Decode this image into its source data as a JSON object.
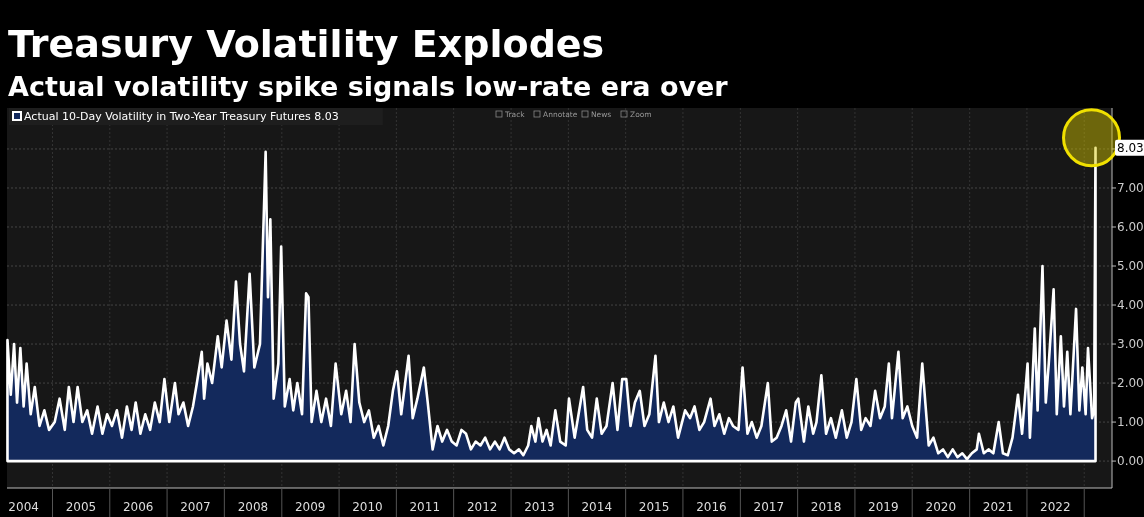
{
  "chart_data": {
    "type": "area",
    "title": "Treasury Volatility Explodes",
    "subtitle": "Actual volatility spike signals low-rate era over",
    "annotations": [
      "Track",
      "Annotate",
      "News",
      "Zoom",
      {
        "text": "8.03",
        "x": "2023-03-14",
        "y": 8.03
      }
    ],
    "x": [
      "2004-03-20",
      "2004-04-10",
      "2004-05-01",
      "2004-05-20",
      "2004-06-10",
      "2004-07-01",
      "2004-07-20",
      "2004-08-15",
      "2004-09-10",
      "2004-10-10",
      "2004-11-10",
      "2004-12-10",
      "2005-01-15",
      "2005-02-15",
      "2005-03-20",
      "2005-04-15",
      "2005-05-15",
      "2005-06-10",
      "2005-07-10",
      "2005-08-10",
      "2005-09-10",
      "2005-10-15",
      "2005-11-15",
      "2005-12-15",
      "2006-01-15",
      "2006-02-15",
      "2006-03-20",
      "2006-04-20",
      "2006-05-20",
      "2006-06-15",
      "2006-07-15",
      "2006-08-15",
      "2006-09-15",
      "2006-10-15",
      "2006-11-15",
      "2006-12-15",
      "2007-01-15",
      "2007-02-20",
      "2007-03-15",
      "2007-04-15",
      "2007-05-15",
      "2007-06-15",
      "2007-07-10",
      "2007-08-10",
      "2007-08-25",
      "2007-09-15",
      "2007-10-15",
      "2007-11-20",
      "2007-12-15",
      "2008-01-15",
      "2008-02-15",
      "2008-03-15",
      "2008-04-10",
      "2008-05-05",
      "2008-06-10",
      "2008-07-10",
      "2008-08-15",
      "2008-09-20",
      "2008-10-05",
      "2008-10-20",
      "2008-11-10",
      "2008-12-10",
      "2008-12-28",
      "2009-01-20",
      "2009-02-20",
      "2009-03-15",
      "2009-04-10",
      "2009-05-10",
      "2009-06-05",
      "2009-06-20",
      "2009-07-10",
      "2009-08-10",
      "2009-09-10",
      "2009-10-10",
      "2009-11-10",
      "2009-12-10",
      "2010-01-15",
      "2010-02-15",
      "2010-03-15",
      "2010-04-10",
      "2010-05-10",
      "2010-06-10",
      "2010-07-10",
      "2010-08-10",
      "2010-09-10",
      "2010-10-10",
      "2010-11-10",
      "2010-12-10",
      "2011-01-05",
      "2011-02-01",
      "2011-03-20",
      "2011-04-15",
      "2011-05-15",
      "2011-06-25",
      "2011-07-20",
      "2011-08-20",
      "2011-09-20",
      "2011-10-20",
      "2011-11-20",
      "2011-12-20",
      "2012-01-20",
      "2012-02-20",
      "2012-03-20",
      "2012-04-20",
      "2012-05-20",
      "2012-06-20",
      "2012-07-20",
      "2012-08-20",
      "2012-09-20",
      "2012-10-20",
      "2012-11-20",
      "2012-12-20",
      "2013-01-20",
      "2013-02-20",
      "2013-03-20",
      "2013-04-20",
      "2013-05-10",
      "2013-06-05",
      "2013-06-25",
      "2013-07-20",
      "2013-08-15",
      "2013-09-10",
      "2013-10-10",
      "2013-11-10",
      "2013-12-15",
      "2014-01-05",
      "2014-02-10",
      "2014-04-05",
      "2014-05-01",
      "2014-06-01",
      "2014-07-01",
      "2014-08-01",
      "2014-09-01",
      "2014-10-10",
      "2014-11-10",
      "2014-12-10",
      "2015-01-05",
      "2015-02-01",
      "2015-03-01",
      "2015-04-01",
      "2015-05-01",
      "2015-06-01",
      "2015-07-10",
      "2015-08-01",
      "2015-09-01",
      "2015-10-01",
      "2015-11-01",
      "2015-12-01",
      "2016-01-15",
      "2016-02-15",
      "2016-03-15",
      "2016-04-15",
      "2016-05-15",
      "2016-06-25",
      "2016-07-20",
      "2016-08-20",
      "2016-09-20",
      "2016-10-20",
      "2016-11-15",
      "2016-12-20",
      "2017-01-15",
      "2017-02-15",
      "2017-03-15",
      "2017-04-15",
      "2017-05-15",
      "2017-06-25",
      "2017-07-20",
      "2017-08-20",
      "2017-09-20",
      "2017-10-20",
      "2017-11-20",
      "2017-12-20",
      "2018-01-05",
      "2018-02-10",
      "2018-03-10",
      "2018-04-10",
      "2018-05-01",
      "2018-06-01",
      "2018-07-01",
      "2018-08-01",
      "2018-09-01",
      "2018-10-10",
      "2018-11-10",
      "2018-12-10",
      "2019-01-10",
      "2019-02-10",
      "2019-03-10",
      "2019-04-10",
      "2019-05-10",
      "2019-06-10",
      "2019-07-10",
      "2019-08-05",
      "2019-08-25",
      "2019-10-05",
      "2019-11-01",
      "2019-12-01",
      "2020-01-01",
      "2020-02-01",
      "2020-03-05",
      "2020-04-15",
      "2020-05-15",
      "2020-06-15",
      "2020-07-15",
      "2020-08-15",
      "2020-09-15",
      "2020-10-15",
      "2020-11-15",
      "2020-12-15",
      "2021-01-15",
      "2021-02-15",
      "2021-03-01",
      "2021-04-01",
      "2021-05-01",
      "2021-06-01",
      "2021-07-05",
      "2021-08-01",
      "2021-09-01",
      "2021-10-01",
      "2021-11-05",
      "2021-12-01",
      "2022-01-05",
      "2022-01-20",
      "2022-02-20",
      "2022-03-10",
      "2022-04-10",
      "2022-05-01",
      "2022-05-20",
      "2022-06-20",
      "2022-07-10",
      "2022-08-05",
      "2022-08-25",
      "2022-09-15",
      "2022-10-05",
      "2022-11-10",
      "2022-12-01",
      "2022-12-20",
      "2023-01-10",
      "2023-01-25",
      "2023-02-20",
      "2023-03-05",
      "2023-03-14"
    ],
    "series": [
      {
        "name": "Actual 10-Day Volatility in Two-Year Treasury Futures 8.03",
        "color": "#13295c",
        "values": [
          3.1,
          1.7,
          3.0,
          1.5,
          2.9,
          1.4,
          2.5,
          1.2,
          1.9,
          0.9,
          1.3,
          0.8,
          1.0,
          1.6,
          0.8,
          1.9,
          1.0,
          1.9,
          1.0,
          1.3,
          0.7,
          1.4,
          0.7,
          1.2,
          0.9,
          1.3,
          0.6,
          1.4,
          0.8,
          1.5,
          0.7,
          1.2,
          0.8,
          1.5,
          1.0,
          2.1,
          1.0,
          2.0,
          1.2,
          1.5,
          0.9,
          1.4,
          2.0,
          2.8,
          1.6,
          2.5,
          2.0,
          3.2,
          2.4,
          3.6,
          2.6,
          4.6,
          3.0,
          2.3,
          4.8,
          2.4,
          3.0,
          7.93,
          4.2,
          6.2,
          1.6,
          2.5,
          5.5,
          1.4,
          2.1,
          1.3,
          2.0,
          1.2,
          4.3,
          4.2,
          1.0,
          1.8,
          1.0,
          1.6,
          0.9,
          2.5,
          1.2,
          1.8,
          1.0,
          3.0,
          1.5,
          1.0,
          1.3,
          0.6,
          0.9,
          0.4,
          0.9,
          1.8,
          2.3,
          1.2,
          2.7,
          1.1,
          1.6,
          2.4,
          1.5,
          0.3,
          0.9,
          0.5,
          0.8,
          0.5,
          0.4,
          0.8,
          0.7,
          0.3,
          0.5,
          0.4,
          0.6,
          0.3,
          0.5,
          0.3,
          0.6,
          0.3,
          0.2,
          0.3,
          0.15,
          0.4,
          0.9,
          0.5,
          1.1,
          0.5,
          0.8,
          0.4,
          1.3,
          0.5,
          0.4,
          1.6,
          0.6,
          1.9,
          0.8,
          0.6,
          1.6,
          0.7,
          0.9,
          2.0,
          0.8,
          2.1,
          2.1,
          0.9,
          1.5,
          1.8,
          0.9,
          1.2,
          2.7,
          1.0,
          1.5,
          1.0,
          1.4,
          0.6,
          1.3,
          1.1,
          1.4,
          0.8,
          1.0,
          1.6,
          0.9,
          1.2,
          0.7,
          1.1,
          0.9,
          0.8,
          2.4,
          0.7,
          1.0,
          0.6,
          0.9,
          2.0,
          0.5,
          0.6,
          0.9,
          1.3,
          0.5,
          1.5,
          1.6,
          0.5,
          1.4,
          0.7,
          1.0,
          2.2,
          0.7,
          1.1,
          0.6,
          1.3,
          0.6,
          1.0,
          2.1,
          0.8,
          1.1,
          0.9,
          1.8,
          1.1,
          1.4,
          2.5,
          1.1,
          2.8,
          1.1,
          1.4,
          0.9,
          0.6,
          2.5,
          0.4,
          0.6,
          0.2,
          0.3,
          0.1,
          0.3,
          0.1,
          0.2,
          0.05,
          0.2,
          0.3,
          0.7,
          0.2,
          0.3,
          0.2,
          1.0,
          0.2,
          0.15,
          0.6,
          1.7,
          0.7,
          2.5,
          0.6,
          3.4,
          1.3,
          5.0,
          1.5,
          2.5,
          4.4,
          1.2,
          3.2,
          1.4,
          2.8,
          1.2,
          3.9,
          1.3,
          2.4,
          1.2,
          2.9,
          1.1,
          1.3,
          8.03
        ]
      }
    ],
    "xlim": [
      "2004-03-17",
      "2023-06-27"
    ],
    "xticks": [
      {
        "value": "2004-07-01",
        "label": "2004"
      },
      {
        "value": "2005-01-01",
        "label": null
      },
      {
        "value": "2005-07-01",
        "label": "2005"
      },
      {
        "value": "2006-01-01",
        "label": null
      },
      {
        "value": "2006-07-01",
        "label": "2006"
      },
      {
        "value": "2007-01-01",
        "label": null
      },
      {
        "value": "2007-07-01",
        "label": "2007"
      },
      {
        "value": "2008-01-01",
        "label": null
      },
      {
        "value": "2008-07-01",
        "label": "2008"
      },
      {
        "value": "2009-01-01",
        "label": null
      },
      {
        "value": "2009-07-01",
        "label": "2009"
      },
      {
        "value": "2010-01-01",
        "label": null
      },
      {
        "value": "2010-07-01",
        "label": "2010"
      },
      {
        "value": "2011-01-01",
        "label": null
      },
      {
        "value": "2011-07-01",
        "label": "2011"
      },
      {
        "value": "2012-01-01",
        "label": null
      },
      {
        "value": "2012-07-01",
        "label": "2012"
      },
      {
        "value": "2013-01-01",
        "label": null
      },
      {
        "value": "2013-07-01",
        "label": "2013"
      },
      {
        "value": "2014-01-01",
        "label": null
      },
      {
        "value": "2014-07-01",
        "label": "2014"
      },
      {
        "value": "2015-01-01",
        "label": null
      },
      {
        "value": "2015-07-01",
        "label": "2015"
      },
      {
        "value": "2016-01-01",
        "label": null
      },
      {
        "value": "2016-07-01",
        "label": "2016"
      },
      {
        "value": "2017-01-01",
        "label": null
      },
      {
        "value": "2017-07-01",
        "label": "2017"
      },
      {
        "value": "2018-01-01",
        "label": null
      },
      {
        "value": "2018-07-01",
        "label": "2018"
      },
      {
        "value": "2019-01-01",
        "label": null
      },
      {
        "value": "2019-07-01",
        "label": "2019"
      },
      {
        "value": "2020-01-01",
        "label": null
      },
      {
        "value": "2020-07-01",
        "label": "2020"
      },
      {
        "value": "2021-01-01",
        "label": null
      },
      {
        "value": "2021-07-01",
        "label": "2021"
      },
      {
        "value": "2022-01-01",
        "label": null
      },
      {
        "value": "2022-07-01",
        "label": "2022"
      },
      {
        "value": "2023-01-01",
        "label": null
      }
    ],
    "ylim": [
      -0.69,
      9.05
    ],
    "yticks": [
      {
        "value": 0,
        "label": "0.00"
      },
      {
        "value": 1,
        "label": "1.00"
      },
      {
        "value": 2,
        "label": "2.00"
      },
      {
        "value": 3,
        "label": "3.00"
      },
      {
        "value": 4,
        "label": "4.00"
      },
      {
        "value": 5,
        "label": "5.00"
      },
      {
        "value": 6,
        "label": "6.00"
      },
      {
        "value": 7,
        "label": "7.00"
      },
      {
        "value": 8,
        "label": null
      }
    ],
    "grid": true,
    "legend": "top left",
    "line_style": "solid",
    "marker": "none"
  }
}
